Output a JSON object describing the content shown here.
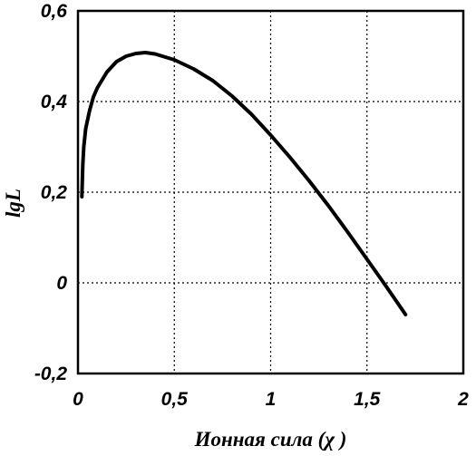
{
  "chart_data": {
    "type": "line",
    "title": "",
    "xlabel": "Ионная сила (χ )",
    "ylabel": "lgL",
    "xlim": [
      0,
      2
    ],
    "ylim": [
      -0.2,
      0.6
    ],
    "x_ticks": [
      0,
      0.5,
      1,
      1.5,
      2
    ],
    "x_tick_labels": [
      "0",
      "0,5",
      "1",
      "1,5",
      "2"
    ],
    "y_ticks": [
      -0.2,
      0,
      0.2,
      0.4,
      0.6
    ],
    "y_tick_labels": [
      "-0,2",
      "0",
      "0,2",
      "0,4",
      "0,6"
    ],
    "grid": true,
    "series": [
      {
        "color": "#000000",
        "x": [
          0.02,
          0.025,
          0.03,
          0.04,
          0.06,
          0.08,
          0.1,
          0.15,
          0.2,
          0.25,
          0.3,
          0.35,
          0.4,
          0.5,
          0.6,
          0.7,
          0.8,
          0.9,
          1.0,
          1.1,
          1.2,
          1.3,
          1.4,
          1.5,
          1.6,
          1.7
        ],
        "y": [
          0.19,
          0.26,
          0.3,
          0.34,
          0.38,
          0.41,
          0.43,
          0.465,
          0.488,
          0.5,
          0.506,
          0.508,
          0.505,
          0.492,
          0.472,
          0.446,
          0.412,
          0.372,
          0.326,
          0.277,
          0.225,
          0.17,
          0.112,
          0.052,
          -0.008,
          -0.07
        ]
      }
    ]
  }
}
